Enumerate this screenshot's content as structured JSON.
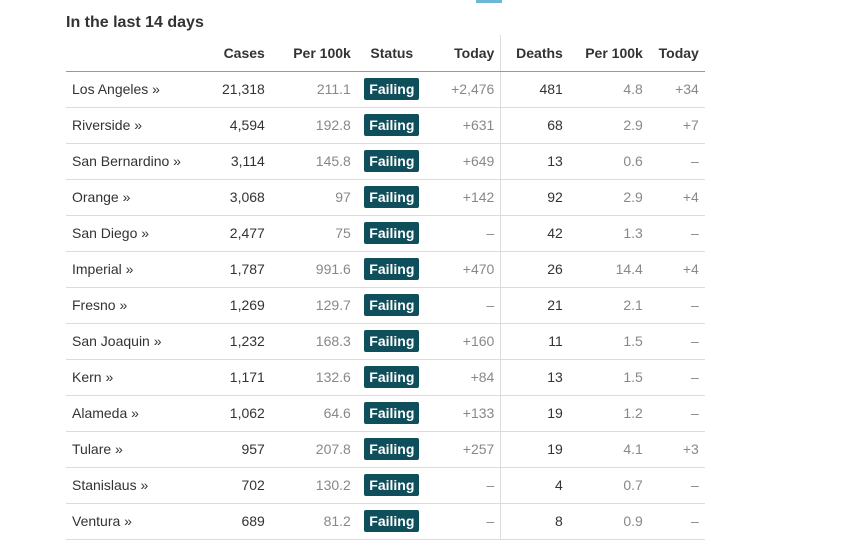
{
  "section": {
    "title": "In the last 14 days"
  },
  "headers": {
    "cases": "Cases",
    "per100k": "Per 100k",
    "status": "Status",
    "today": "Today",
    "deaths": "Deaths",
    "deaths_per100k": "Per 100k",
    "deaths_today": "Today"
  },
  "rows": [
    {
      "county": "Los Angeles »",
      "cases": "21,318",
      "per100k": "211.1",
      "status": "Failing",
      "today": "+2,476",
      "deaths": "481",
      "deaths_per100k": "4.8",
      "deaths_today": "+34"
    },
    {
      "county": "Riverside »",
      "cases": "4,594",
      "per100k": "192.8",
      "status": "Failing",
      "today": "+631",
      "deaths": "68",
      "deaths_per100k": "2.9",
      "deaths_today": "+7"
    },
    {
      "county": "San Bernardino »",
      "cases": "3,114",
      "per100k": "145.8",
      "status": "Failing",
      "today": "+649",
      "deaths": "13",
      "deaths_per100k": "0.6",
      "deaths_today": "–"
    },
    {
      "county": "Orange »",
      "cases": "3,068",
      "per100k": "97",
      "status": "Failing",
      "today": "+142",
      "deaths": "92",
      "deaths_per100k": "2.9",
      "deaths_today": "+4"
    },
    {
      "county": "San Diego »",
      "cases": "2,477",
      "per100k": "75",
      "status": "Failing",
      "today": "–",
      "deaths": "42",
      "deaths_per100k": "1.3",
      "deaths_today": "–"
    },
    {
      "county": "Imperial »",
      "cases": "1,787",
      "per100k": "991.6",
      "status": "Failing",
      "today": "+470",
      "deaths": "26",
      "deaths_per100k": "14.4",
      "deaths_today": "+4"
    },
    {
      "county": "Fresno »",
      "cases": "1,269",
      "per100k": "129.7",
      "status": "Failing",
      "today": "–",
      "deaths": "21",
      "deaths_per100k": "2.1",
      "deaths_today": "–"
    },
    {
      "county": "San Joaquin »",
      "cases": "1,232",
      "per100k": "168.3",
      "status": "Failing",
      "today": "+160",
      "deaths": "11",
      "deaths_per100k": "1.5",
      "deaths_today": "–"
    },
    {
      "county": "Kern »",
      "cases": "1,171",
      "per100k": "132.6",
      "status": "Failing",
      "today": "+84",
      "deaths": "13",
      "deaths_per100k": "1.5",
      "deaths_today": "–"
    },
    {
      "county": "Alameda »",
      "cases": "1,062",
      "per100k": "64.6",
      "status": "Failing",
      "today": "+133",
      "deaths": "19",
      "deaths_per100k": "1.2",
      "deaths_today": "–"
    },
    {
      "county": "Tulare »",
      "cases": "957",
      "per100k": "207.8",
      "status": "Failing",
      "today": "+257",
      "deaths": "19",
      "deaths_per100k": "4.1",
      "deaths_today": "+3"
    },
    {
      "county": "Stanislaus »",
      "cases": "702",
      "per100k": "130.2",
      "status": "Failing",
      "today": "–",
      "deaths": "4",
      "deaths_per100k": "0.7",
      "deaths_today": "–"
    },
    {
      "county": "Ventura »",
      "cases": "689",
      "per100k": "81.2",
      "status": "Failing",
      "today": "–",
      "deaths": "8",
      "deaths_per100k": "0.9",
      "deaths_today": "–"
    }
  ],
  "colors": {
    "status_badge_bg": "#0f4f5c",
    "status_badge_text": "#ffffff",
    "muted_text": "#888888"
  }
}
